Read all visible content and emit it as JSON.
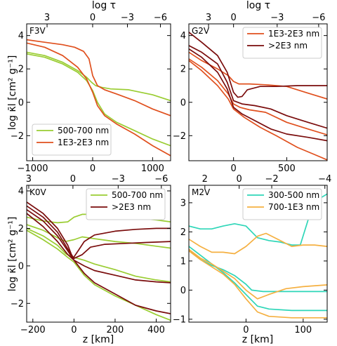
{
  "figure": {
    "top_axis_label": "log τ",
    "y_axis_label": "log κ̄l [cm² g⁻¹]",
    "x_axis_label": "z [km]"
  },
  "chart_data": [
    {
      "type": "line",
      "panel": "F3V",
      "xlim": [
        -1100,
        1300
      ],
      "ylim": [
        -3.5,
        4.7
      ],
      "xticks": [
        -1000,
        0,
        1000
      ],
      "yticks": [
        -2,
        0,
        2,
        4
      ],
      "top_ticks": [
        {
          "label": "3",
          "x": -760
        },
        {
          "label": "0",
          "x": 0
        },
        {
          "label": "−3",
          "x": 580
        },
        {
          "label": "−6",
          "x": 1130
        }
      ],
      "legend": {
        "position": "bottom-left"
      },
      "series": [
        {
          "name": "500-700 nm",
          "color": "#9acd32",
          "x": [
            -1100,
            -800,
            -500,
            -250,
            -100,
            -20,
            50,
            150,
            300,
            600,
            1000,
            1300
          ],
          "y": [
            3.0,
            2.8,
            2.4,
            1.9,
            1.5,
            1.2,
            1.0,
            0.9,
            0.8,
            0.75,
            0.45,
            0.1
          ]
        },
        {
          "name": "",
          "color": "#9acd32",
          "x": [
            -1100,
            -800,
            -500,
            -250,
            -100,
            0,
            80,
            200,
            400,
            700,
            1000,
            1300
          ],
          "y": [
            2.9,
            2.7,
            2.3,
            1.8,
            1.3,
            0.7,
            0.0,
            -0.7,
            -1.2,
            -1.7,
            -2.2,
            -2.6
          ]
        },
        {
          "name": "1E3-2E3 nm",
          "color": "#e0501e",
          "x": [
            -1100,
            -800,
            -500,
            -300,
            -150,
            -60,
            0,
            80,
            200,
            400,
            700,
            1000,
            1300
          ],
          "y": [
            3.75,
            3.6,
            3.45,
            3.3,
            3.05,
            2.6,
            1.6,
            1.0,
            0.75,
            0.5,
            0.1,
            -0.4,
            -0.8
          ]
        },
        {
          "name": "",
          "color": "#e0501e",
          "x": [
            -1100,
            -800,
            -500,
            -250,
            -100,
            0,
            80,
            200,
            400,
            700,
            1000,
            1300
          ],
          "y": [
            3.55,
            3.3,
            2.8,
            2.1,
            1.4,
            0.6,
            -0.2,
            -0.8,
            -1.3,
            -1.9,
            -2.6,
            -3.2
          ]
        }
      ]
    },
    {
      "type": "line",
      "panel": "G2V",
      "xlim": [
        -420,
        880
      ],
      "ylim": [
        -3.5,
        4.7
      ],
      "xticks": [
        0,
        500
      ],
      "yticks": [
        -2,
        0,
        2,
        4
      ],
      "top_ticks": [
        {
          "label": "3",
          "x": -235
        },
        {
          "label": "0",
          "x": 0
        },
        {
          "label": "−3",
          "x": 410
        },
        {
          "label": "−6",
          "x": 800
        }
      ],
      "legend": {
        "position": "top-right"
      },
      "series": [
        {
          "name": "1E3-2E3 nm",
          "color": "#e0501e",
          "x": [
            -420,
            -300,
            -150,
            -50,
            0,
            50,
            150,
            300,
            500,
            700,
            880
          ],
          "y": [
            3.0,
            2.5,
            2.0,
            1.6,
            1.25,
            1.1,
            1.1,
            1.05,
            0.95,
            0.55,
            0.2
          ]
        },
        {
          "name": "",
          "color": "#e0501e",
          "x": [
            -420,
            -300,
            -150,
            -50,
            0,
            60,
            150,
            300,
            500,
            700,
            880
          ],
          "y": [
            2.6,
            2.1,
            1.3,
            0.5,
            -0.1,
            -0.3,
            -0.45,
            -0.6,
            -1.2,
            -1.6,
            -1.95
          ]
        },
        {
          "name": "",
          "color": "#e0501e",
          "x": [
            -420,
            -300,
            -150,
            -50,
            0,
            100,
            250,
            400,
            600,
            750,
            880
          ],
          "y": [
            2.5,
            1.9,
            1.0,
            0.2,
            -0.4,
            -0.9,
            -1.5,
            -2.0,
            -2.7,
            -3.1,
            -3.45
          ]
        },
        {
          "name": ">2E3 nm",
          "color": "#7a0c0c",
          "x": [
            -420,
            -300,
            -150,
            -60,
            0,
            40,
            80,
            130,
            250,
            400,
            600,
            880
          ],
          "y": [
            4.2,
            3.6,
            2.8,
            1.8,
            0.6,
            0.3,
            0.35,
            0.75,
            0.95,
            0.95,
            1.0,
            1.0
          ]
        },
        {
          "name": "",
          "color": "#7a0c0c",
          "x": [
            -420,
            -300,
            -150,
            -60,
            0,
            80,
            200,
            350,
            500,
            700,
            880
          ],
          "y": [
            3.4,
            3.0,
            2.3,
            1.2,
            0.1,
            -0.1,
            -0.2,
            -0.4,
            -0.8,
            -1.2,
            -1.55
          ]
        },
        {
          "name": "",
          "color": "#7a0c0c",
          "x": [
            -420,
            -300,
            -150,
            -60,
            0,
            80,
            200,
            350,
            500,
            700,
            880
          ],
          "y": [
            3.2,
            2.7,
            1.8,
            0.8,
            -0.3,
            -0.7,
            -1.1,
            -1.6,
            -1.9,
            -2.1,
            -2.3
          ]
        }
      ]
    },
    {
      "type": "line",
      "panel": "K0V",
      "xlim": [
        -230,
        470
      ],
      "ylim": [
        -3.0,
        4.3
      ],
      "xticks": [
        -200,
        0,
        200,
        400
      ],
      "yticks": [
        -2,
        0,
        2,
        4
      ],
      "top_ticks": [
        {
          "label": "3",
          "x": -220
        },
        {
          "label": "0",
          "x": -5
        },
        {
          "label": "−3",
          "x": 215
        },
        {
          "label": "−6",
          "x": 425
        }
      ],
      "legend": {
        "position": "top-right"
      },
      "series": [
        {
          "name": "500-700 nm",
          "color": "#9acd32",
          "x": [
            -230,
            -150,
            -80,
            -30,
            0,
            40,
            100,
            200,
            300,
            400,
            470
          ],
          "y": [
            2.6,
            2.4,
            2.3,
            2.35,
            2.6,
            2.75,
            2.75,
            2.65,
            2.55,
            2.45,
            2.35
          ]
        },
        {
          "name": "",
          "color": "#9acd32",
          "x": [
            -230,
            -150,
            -80,
            -40,
            0,
            40,
            100,
            200,
            300,
            400,
            470
          ],
          "y": [
            2.2,
            1.9,
            1.5,
            1.3,
            1.4,
            1.55,
            1.45,
            1.3,
            1.2,
            1.05,
            0.95
          ]
        },
        {
          "name": "",
          "color": "#9acd32",
          "x": [
            -230,
            -150,
            -80,
            -40,
            0,
            50,
            100,
            200,
            300,
            400,
            470
          ],
          "y": [
            2.0,
            1.6,
            1.1,
            0.65,
            0.45,
            0.3,
            0.1,
            -0.2,
            -0.55,
            -0.75,
            -0.85
          ]
        },
        {
          "name": "",
          "color": "#9acd32",
          "x": [
            -230,
            -150,
            -80,
            -30,
            0,
            50,
            100,
            200,
            300,
            400,
            470
          ],
          "y": [
            1.9,
            1.4,
            0.9,
            0.45,
            0.2,
            -0.5,
            -1.0,
            -1.6,
            -2.1,
            -2.6,
            -2.9
          ]
        },
        {
          "name": ">2E3 nm",
          "color": "#7a0c0c",
          "x": [
            -230,
            -150,
            -80,
            -30,
            -5,
            20,
            50,
            100,
            200,
            300,
            400,
            470
          ],
          "y": [
            3.4,
            2.8,
            2.0,
            1.1,
            0.4,
            0.8,
            1.3,
            1.65,
            1.85,
            1.95,
            2.0,
            2.0
          ]
        },
        {
          "name": "",
          "color": "#7a0c0c",
          "x": [
            -230,
            -150,
            -80,
            -30,
            0,
            40,
            80,
            150,
            250,
            350,
            470
          ],
          "y": [
            3.2,
            2.6,
            1.8,
            0.9,
            0.4,
            0.6,
            1.0,
            1.15,
            1.2,
            1.25,
            1.3
          ]
        },
        {
          "name": "",
          "color": "#7a0c0c",
          "x": [
            -230,
            -150,
            -80,
            -30,
            0,
            50,
            100,
            200,
            300,
            400,
            470
          ],
          "y": [
            3.0,
            2.4,
            1.6,
            0.8,
            0.3,
            0.0,
            -0.25,
            -0.5,
            -0.75,
            -0.85,
            -0.9
          ]
        },
        {
          "name": "",
          "color": "#7a0c0c",
          "x": [
            -230,
            -150,
            -80,
            -30,
            0,
            50,
            100,
            200,
            300,
            400,
            470
          ],
          "y": [
            2.8,
            2.1,
            1.3,
            0.6,
            0.3,
            -0.4,
            -0.9,
            -1.5,
            -2.1,
            -2.4,
            -2.55
          ]
        }
      ]
    },
    {
      "type": "line",
      "panel": "M2V",
      "xlim": [
        -100,
        142
      ],
      "ylim": [
        -1.1,
        3.6
      ],
      "xticks": [
        0,
        100
      ],
      "yticks": [
        -1,
        0,
        1,
        2,
        3
      ],
      "top_ticks": [
        {
          "label": "2",
          "x": -72
        },
        {
          "label": "0",
          "x": -12
        },
        {
          "label": "−2",
          "x": 45
        },
        {
          "label": "−4",
          "x": 138
        }
      ],
      "legend": {
        "position": "top-right"
      },
      "series": [
        {
          "name": "300-500 nm",
          "color": "#2ed6b8",
          "x": [
            -100,
            -80,
            -60,
            -40,
            -20,
            0,
            20,
            40,
            60,
            80,
            95,
            110,
            125,
            142
          ],
          "y": [
            2.2,
            2.1,
            2.1,
            2.2,
            2.28,
            2.2,
            1.8,
            1.7,
            1.65,
            1.55,
            1.55,
            2.5,
            3.1,
            3.3
          ]
        },
        {
          "name": "",
          "color": "#2ed6b8",
          "x": [
            -100,
            -80,
            -60,
            -40,
            -20,
            0,
            10,
            30,
            60,
            100,
            142
          ],
          "y": [
            1.4,
            1.05,
            0.85,
            0.7,
            0.5,
            0.2,
            0.0,
            -0.05,
            -0.05,
            -0.05,
            -0.05
          ]
        },
        {
          "name": "",
          "color": "#2ed6b8",
          "x": [
            -100,
            -80,
            -60,
            -40,
            -20,
            0,
            20,
            40,
            80,
            142
          ],
          "y": [
            1.5,
            1.2,
            0.9,
            0.6,
            0.25,
            -0.15,
            -0.55,
            -0.65,
            -0.7,
            -0.7
          ]
        },
        {
          "name": "700-1E3 nm",
          "color": "#f5b041",
          "x": [
            -100,
            -80,
            -60,
            -40,
            -20,
            0,
            20,
            35,
            60,
            80,
            100,
            120,
            142
          ],
          "y": [
            1.75,
            1.5,
            1.3,
            1.3,
            1.25,
            1.5,
            1.85,
            1.95,
            1.7,
            1.5,
            1.55,
            1.55,
            1.5
          ]
        },
        {
          "name": "",
          "color": "#f5b041",
          "x": [
            -100,
            -80,
            -60,
            -40,
            -20,
            0,
            20,
            40,
            70,
            100,
            142
          ],
          "y": [
            1.4,
            1.1,
            0.9,
            0.65,
            0.4,
            0.0,
            -0.3,
            -0.15,
            0.05,
            0.12,
            0.18
          ]
        },
        {
          "name": "",
          "color": "#f5b041",
          "x": [
            -100,
            -80,
            -60,
            -40,
            -20,
            0,
            20,
            40,
            80,
            142
          ],
          "y": [
            1.35,
            1.05,
            0.8,
            0.55,
            0.2,
            -0.3,
            -0.75,
            -0.9,
            -0.95,
            -0.95
          ]
        }
      ]
    }
  ]
}
